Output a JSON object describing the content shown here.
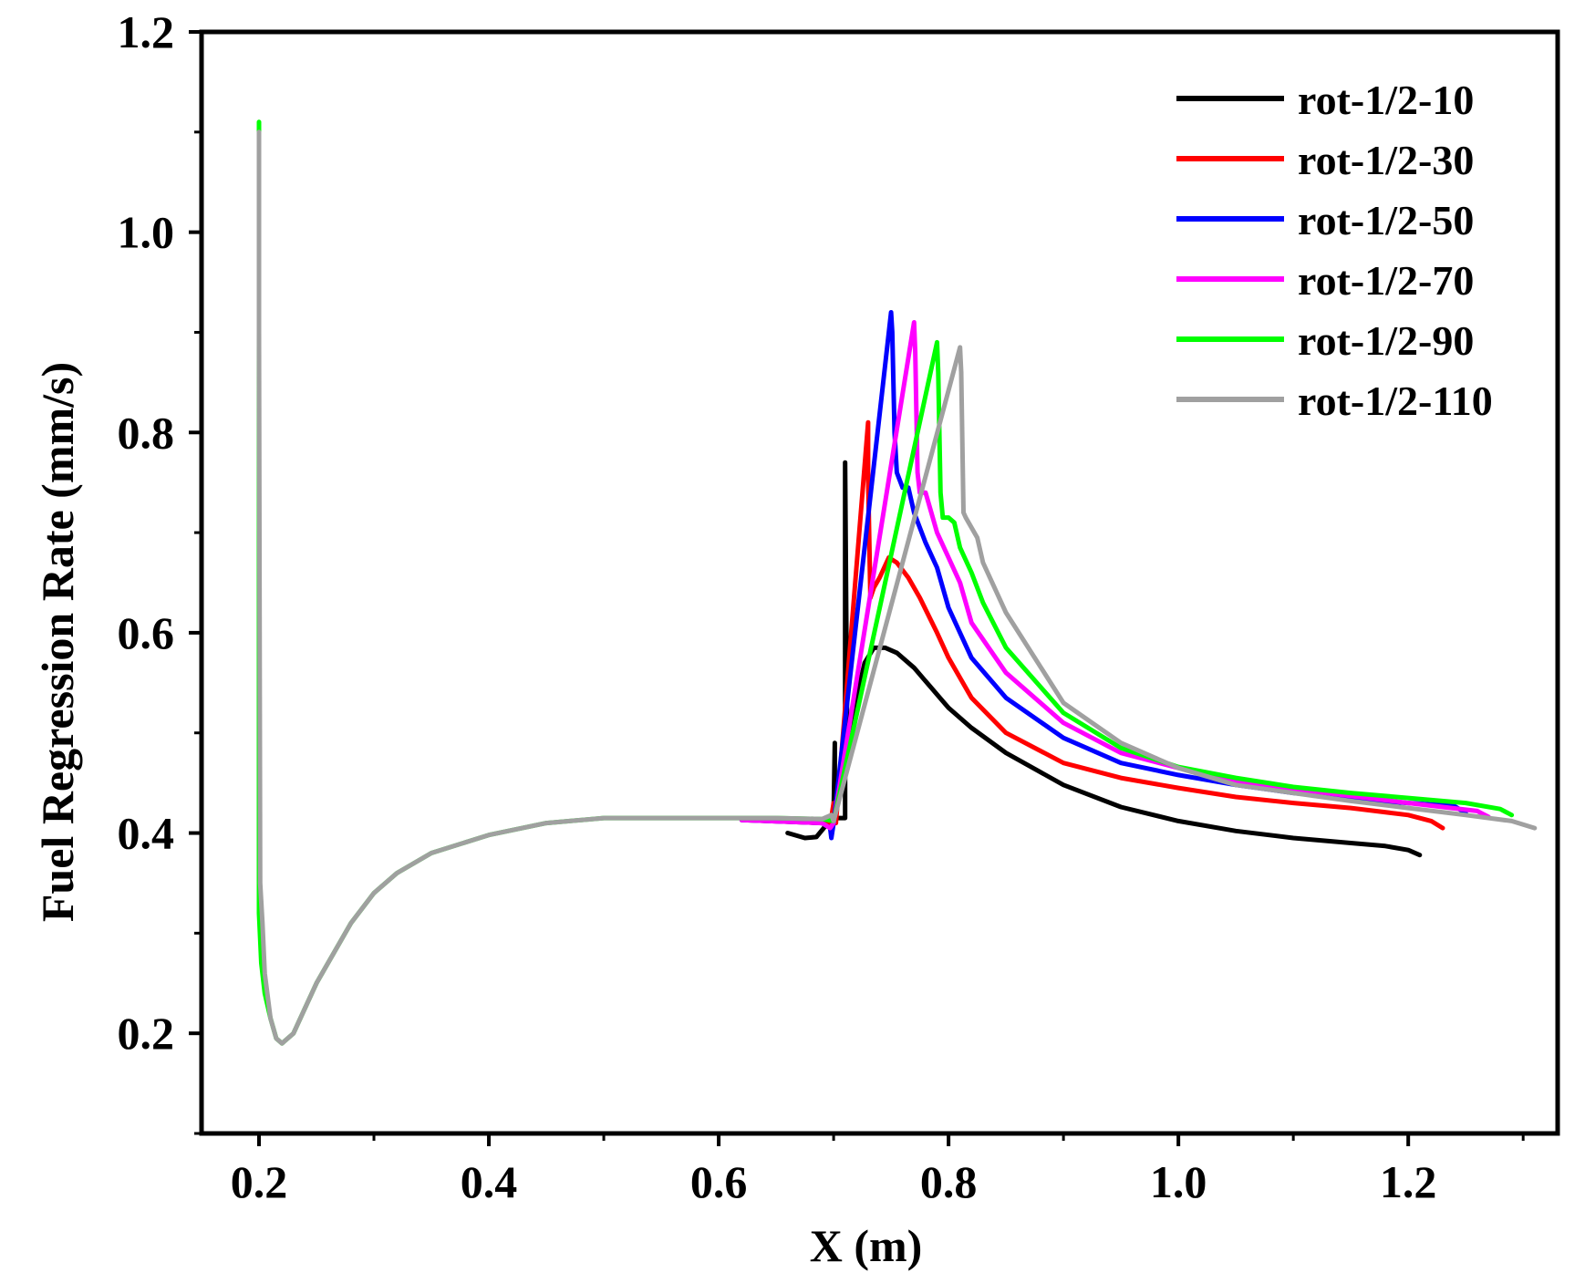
{
  "chart_data": {
    "type": "line",
    "title": "",
    "xlabel": "X (m)",
    "ylabel": "Fuel Regression Rate (mm/s)",
    "xlim": [
      0.15,
      1.33
    ],
    "ylim": [
      0.1,
      1.2
    ],
    "xticks": [
      0.2,
      0.4,
      0.6,
      0.8,
      1.0,
      1.2
    ],
    "xtick_labels": [
      "0.2",
      "0.4",
      "0.6",
      "0.8",
      "1.0",
      "1.2"
    ],
    "yticks": [
      0.2,
      0.4,
      0.6,
      0.8,
      1.0,
      1.2
    ],
    "ytick_labels": [
      "0.2",
      "0.4",
      "0.6",
      "0.8",
      "1.0",
      "1.2"
    ],
    "legend_position": "top-right",
    "grid": false,
    "series": [
      {
        "name": "rot-1/2-10",
        "color": "#000000",
        "x": [
          0.66,
          0.675,
          0.685,
          0.695,
          0.7,
          0.701,
          0.701,
          0.705,
          0.71,
          0.71,
          0.712,
          0.715,
          0.72,
          0.727,
          0.735,
          0.745,
          0.755,
          0.77,
          0.785,
          0.8,
          0.82,
          0.85,
          0.9,
          0.95,
          1.0,
          1.05,
          1.1,
          1.15,
          1.18,
          1.2,
          1.21
        ],
        "y": [
          0.4,
          0.395,
          0.396,
          0.41,
          0.42,
          0.49,
          0.415,
          0.415,
          0.415,
          0.77,
          0.465,
          0.49,
          0.535,
          0.57,
          0.585,
          0.585,
          0.58,
          0.565,
          0.545,
          0.525,
          0.505,
          0.48,
          0.448,
          0.426,
          0.412,
          0.402,
          0.395,
          0.39,
          0.387,
          0.383,
          0.378
        ]
      },
      {
        "name": "rot-1/2-30",
        "color": "#ff0000",
        "x": [
          0.62,
          0.69,
          0.697,
          0.7,
          0.702,
          0.73,
          0.73,
          0.732,
          0.735,
          0.74,
          0.748,
          0.755,
          0.765,
          0.775,
          0.79,
          0.8,
          0.82,
          0.85,
          0.9,
          0.95,
          1.0,
          1.05,
          1.1,
          1.15,
          1.2,
          1.22,
          1.23
        ],
        "y": [
          0.413,
          0.41,
          0.408,
          0.43,
          0.41,
          0.81,
          0.755,
          0.635,
          0.645,
          0.655,
          0.675,
          0.67,
          0.655,
          0.635,
          0.6,
          0.575,
          0.535,
          0.5,
          0.47,
          0.455,
          0.445,
          0.436,
          0.43,
          0.425,
          0.418,
          0.412,
          0.405
        ]
      },
      {
        "name": "rot-1/2-50",
        "color": "#0000ff",
        "x": [
          0.62,
          0.69,
          0.697,
          0.698,
          0.7,
          0.75,
          0.751,
          0.753,
          0.755,
          0.76,
          0.765,
          0.77,
          0.78,
          0.79,
          0.8,
          0.82,
          0.85,
          0.9,
          0.95,
          1.0,
          1.05,
          1.1,
          1.15,
          1.2,
          1.24,
          1.25
        ],
        "y": [
          0.413,
          0.41,
          0.405,
          0.395,
          0.41,
          0.92,
          0.9,
          0.8,
          0.76,
          0.745,
          0.745,
          0.72,
          0.69,
          0.665,
          0.625,
          0.575,
          0.535,
          0.495,
          0.47,
          0.458,
          0.448,
          0.44,
          0.434,
          0.43,
          0.427,
          0.42
        ]
      },
      {
        "name": "rot-1/2-70",
        "color": "#ff00ff",
        "x": [
          0.62,
          0.69,
          0.697,
          0.7,
          0.77,
          0.771,
          0.773,
          0.775,
          0.78,
          0.785,
          0.79,
          0.8,
          0.81,
          0.82,
          0.85,
          0.9,
          0.95,
          1.0,
          1.05,
          1.1,
          1.15,
          1.2,
          1.26,
          1.27
        ],
        "y": [
          0.413,
          0.41,
          0.405,
          0.41,
          0.91,
          0.88,
          0.76,
          0.74,
          0.74,
          0.72,
          0.7,
          0.675,
          0.65,
          0.61,
          0.56,
          0.51,
          0.48,
          0.465,
          0.452,
          0.444,
          0.437,
          0.43,
          0.422,
          0.416
        ]
      },
      {
        "name": "rot-1/2-90",
        "color": "#00ff00",
        "x": [
          0.2,
          0.2,
          0.202,
          0.205,
          0.21,
          0.215,
          0.22,
          0.23,
          0.24,
          0.25,
          0.26,
          0.28,
          0.3,
          0.32,
          0.35,
          0.4,
          0.45,
          0.5,
          0.55,
          0.6,
          0.65,
          0.69,
          0.7,
          0.79,
          0.791,
          0.793,
          0.795,
          0.8,
          0.805,
          0.81,
          0.82,
          0.83,
          0.85,
          0.9,
          0.95,
          1.0,
          1.05,
          1.1,
          1.15,
          1.2,
          1.25,
          1.28,
          1.29
        ],
        "y": [
          1.11,
          0.32,
          0.27,
          0.24,
          0.215,
          0.195,
          0.19,
          0.2,
          0.225,
          0.25,
          0.27,
          0.31,
          0.34,
          0.36,
          0.38,
          0.398,
          0.41,
          0.415,
          0.415,
          0.415,
          0.415,
          0.414,
          0.412,
          0.89,
          0.86,
          0.74,
          0.715,
          0.715,
          0.71,
          0.685,
          0.66,
          0.63,
          0.585,
          0.52,
          0.485,
          0.466,
          0.455,
          0.446,
          0.44,
          0.435,
          0.43,
          0.424,
          0.418
        ]
      },
      {
        "name": "rot-1/2-110",
        "color": "#a0a0a0",
        "x": [
          0.2,
          0.2,
          0.201,
          0.203,
          0.205,
          0.21,
          0.215,
          0.22,
          0.23,
          0.24,
          0.25,
          0.26,
          0.28,
          0.3,
          0.32,
          0.35,
          0.4,
          0.45,
          0.5,
          0.55,
          0.6,
          0.65,
          0.69,
          0.698,
          0.7,
          0.81,
          0.811,
          0.813,
          0.815,
          0.82,
          0.825,
          0.83,
          0.85,
          0.9,
          0.95,
          1.0,
          1.05,
          1.1,
          1.15,
          1.2,
          1.25,
          1.29,
          1.31
        ],
        "y": [
          1.1,
          0.9,
          0.35,
          0.31,
          0.26,
          0.215,
          0.195,
          0.19,
          0.2,
          0.225,
          0.25,
          0.27,
          0.31,
          0.34,
          0.36,
          0.38,
          0.398,
          0.41,
          0.415,
          0.415,
          0.415,
          0.415,
          0.414,
          0.418,
          0.412,
          0.885,
          0.86,
          0.72,
          0.715,
          0.705,
          0.695,
          0.67,
          0.62,
          0.53,
          0.49,
          0.465,
          0.448,
          0.44,
          0.432,
          0.425,
          0.418,
          0.412,
          0.405
        ]
      }
    ]
  }
}
